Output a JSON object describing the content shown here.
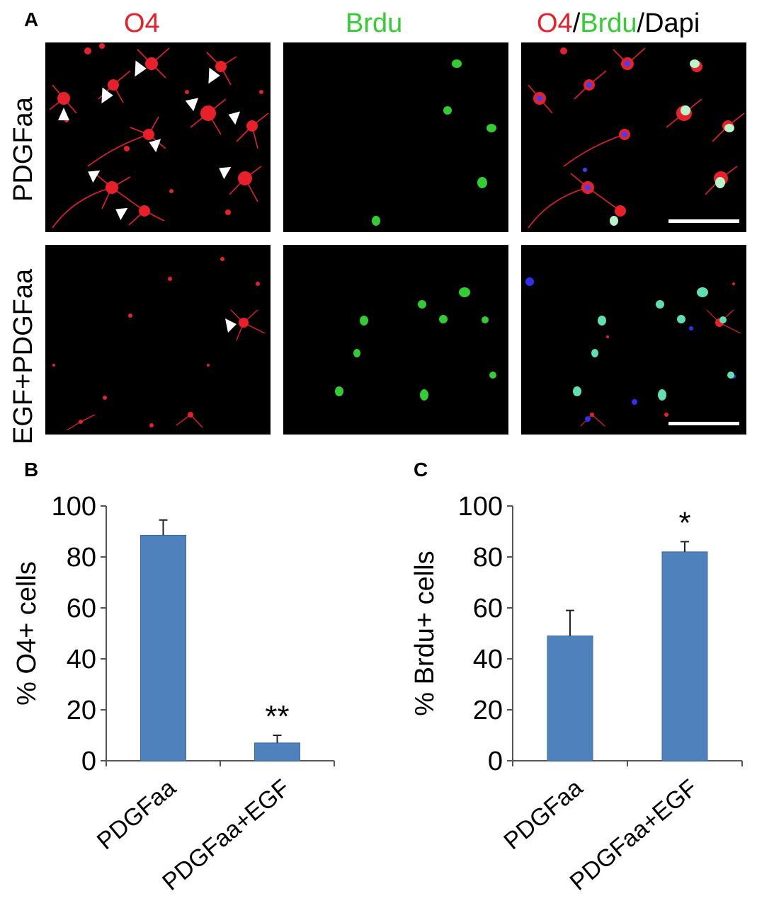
{
  "panels": {
    "a": "A",
    "b": "B",
    "c": "C"
  },
  "columns": {
    "o4": "O4",
    "brdu": "Brdu",
    "merge": {
      "o4": "O4",
      "slash1": "/",
      "brdu": "Brdu",
      "slash2": "/",
      "dapi": "Dapi"
    }
  },
  "rows": {
    "top": "PDGFaa",
    "bottom": "EGF+PDGFaa"
  },
  "colors": {
    "red": "#e8202a",
    "green": "#33cc33",
    "bar": "#4f81bd",
    "bar_edge": "#3a6aa3"
  },
  "chart_data": [
    {
      "type": "bar",
      "panel": "B",
      "categories": [
        "PDGFaa",
        "PDGFaa+EGF"
      ],
      "values": [
        88.5,
        7
      ],
      "errors": [
        6,
        3
      ],
      "annotations": [
        "",
        "**"
      ],
      "ylabel": "% O4+ cells",
      "ylim": [
        0,
        100
      ],
      "yticks": [
        0,
        20,
        40,
        60,
        80,
        100
      ]
    },
    {
      "type": "bar",
      "panel": "C",
      "categories": [
        "PDGFaa",
        "PDGFaa+EGF"
      ],
      "values": [
        49,
        82
      ],
      "errors": [
        10,
        4
      ],
      "annotations": [
        "",
        "*"
      ],
      "ylabel": "% Brdu+ cells",
      "ylim": [
        0,
        100
      ],
      "yticks": [
        0,
        20,
        40,
        60,
        80,
        100
      ]
    }
  ]
}
